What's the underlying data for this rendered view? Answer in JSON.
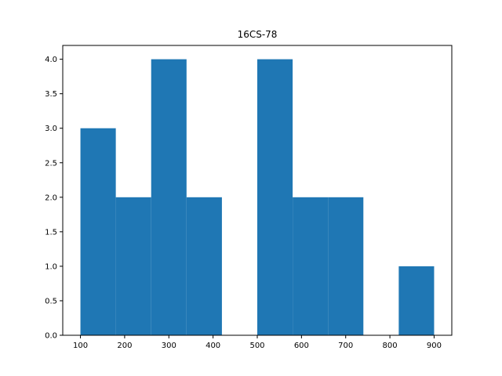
{
  "chart_data": {
    "type": "bar",
    "subtype": "histogram",
    "title": "16CS-78",
    "xlabel": "",
    "ylabel": "",
    "bins": [
      {
        "x0": 100,
        "x1": 180,
        "value": 3
      },
      {
        "x0": 180,
        "x1": 260,
        "value": 2
      },
      {
        "x0": 260,
        "x1": 340,
        "value": 4
      },
      {
        "x0": 340,
        "x1": 420,
        "value": 2
      },
      {
        "x0": 420,
        "x1": 500,
        "value": 0
      },
      {
        "x0": 500,
        "x1": 580,
        "value": 4
      },
      {
        "x0": 580,
        "x1": 660,
        "value": 2
      },
      {
        "x0": 660,
        "x1": 740,
        "value": 2
      },
      {
        "x0": 740,
        "x1": 820,
        "value": 0
      },
      {
        "x0": 820,
        "x1": 900,
        "value": 1
      }
    ],
    "xlim": [
      60,
      940
    ],
    "ylim": [
      0,
      4.2
    ],
    "xticks": [
      "100",
      "200",
      "300",
      "400",
      "500",
      "600",
      "700",
      "800",
      "900"
    ],
    "yticks": [
      "0.0",
      "0.5",
      "1.0",
      "1.5",
      "2.0",
      "2.5",
      "3.0",
      "3.5",
      "4.0"
    ],
    "bar_color": "#1f77b4",
    "grid": false,
    "legend": "none"
  }
}
